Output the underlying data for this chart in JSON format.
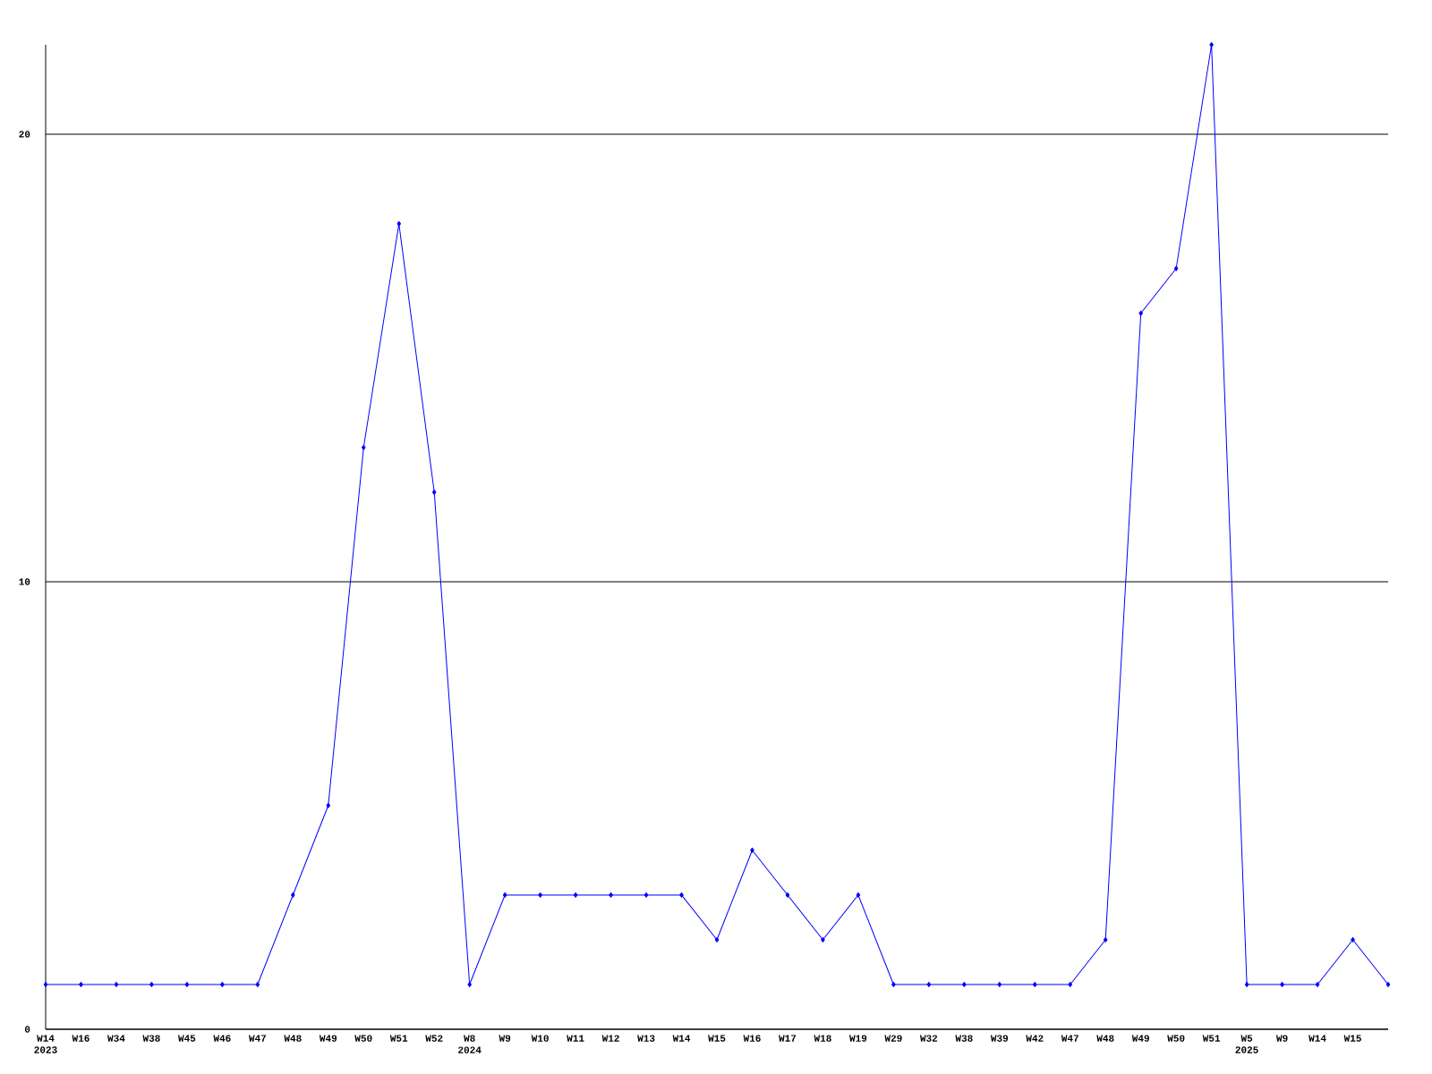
{
  "chart_data": {
    "type": "line",
    "categories": [
      "W14 2023",
      "W16",
      "W34",
      "W38",
      "W45",
      "W46",
      "W47",
      "W48",
      "W49",
      "W50",
      "W51",
      "W52",
      "W8 2024",
      "W9",
      "W10",
      "W11",
      "W12",
      "W13",
      "W14",
      "W15",
      "W16",
      "W17",
      "W18",
      "W19",
      "W29",
      "W32",
      "W38",
      "W39",
      "W42",
      "W47",
      "W48",
      "W49",
      "W50",
      "W51",
      "W5 2025",
      "W9",
      "W14",
      "W15",
      null
    ],
    "values": [
      1,
      1,
      1,
      1,
      1,
      1,
      1,
      3,
      5,
      13,
      18,
      12,
      1,
      3,
      3,
      3,
      3,
      3,
      3,
      2,
      4,
      3,
      2,
      3,
      1,
      1,
      1,
      1,
      1,
      1,
      2,
      16,
      17,
      22,
      1,
      1,
      1,
      2,
      1
    ],
    "color": "#0000ff",
    "ylim": [
      0,
      22
    ],
    "yticks": [
      0,
      10,
      20
    ],
    "grid": "y",
    "marker": "diamond",
    "line_style": "solid"
  }
}
